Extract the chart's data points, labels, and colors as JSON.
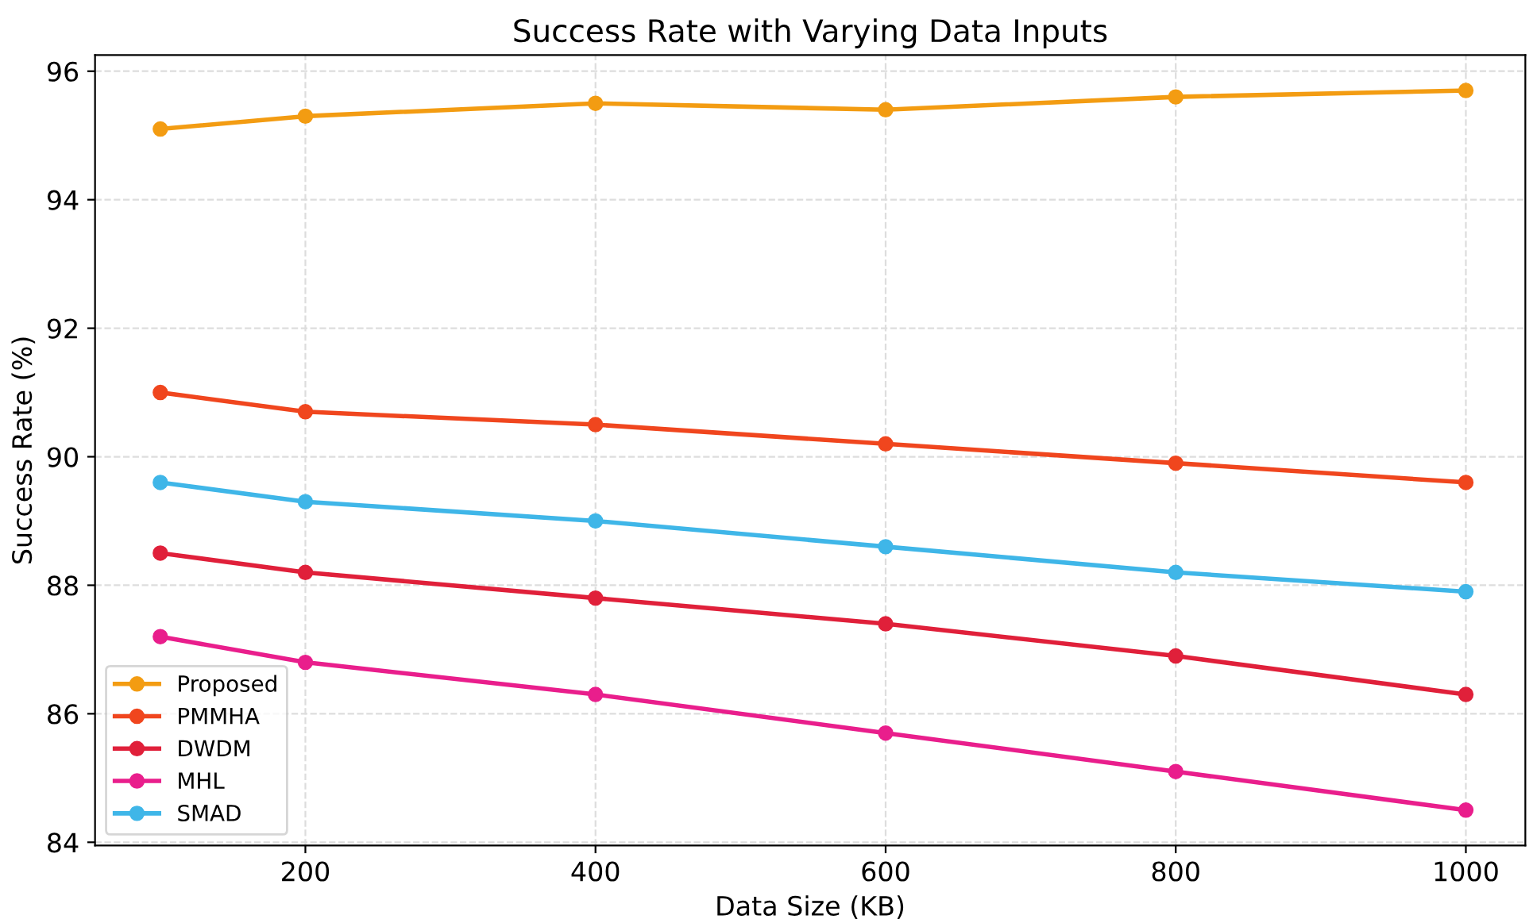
{
  "chart_data": {
    "type": "line",
    "title": "Success Rate with Varying Data Inputs",
    "xlabel": "Data Size (KB)",
    "ylabel": "Success Rate (%)",
    "x": [
      100,
      200,
      400,
      600,
      800,
      1000
    ],
    "series": [
      {
        "name": "Proposed",
        "color": "#f39c12",
        "values": [
          95.1,
          95.3,
          95.5,
          95.4,
          95.6,
          95.7
        ]
      },
      {
        "name": "PMMHA",
        "color": "#f0461e",
        "values": [
          91.0,
          90.7,
          90.5,
          90.2,
          89.9,
          89.6
        ]
      },
      {
        "name": "DWDM",
        "color": "#e0203a",
        "values": [
          88.5,
          88.2,
          87.8,
          87.4,
          86.9,
          86.3
        ]
      },
      {
        "name": "MHL",
        "color": "#e91e8c",
        "values": [
          87.2,
          86.8,
          86.3,
          85.7,
          85.1,
          84.5
        ]
      },
      {
        "name": "SMAD",
        "color": "#3fb6e8",
        "values": [
          89.6,
          89.3,
          89.0,
          88.6,
          88.2,
          87.9
        ]
      }
    ],
    "xlim": [
      55,
      1041
    ],
    "ylim": [
      83.95,
      96.25
    ],
    "xticks": [
      200,
      400,
      600,
      800,
      1000
    ],
    "yticks": [
      84,
      86,
      88,
      90,
      92,
      94,
      96
    ],
    "grid": true,
    "legend": "bottom left",
    "marker": "circle",
    "line_style": "solid"
  }
}
